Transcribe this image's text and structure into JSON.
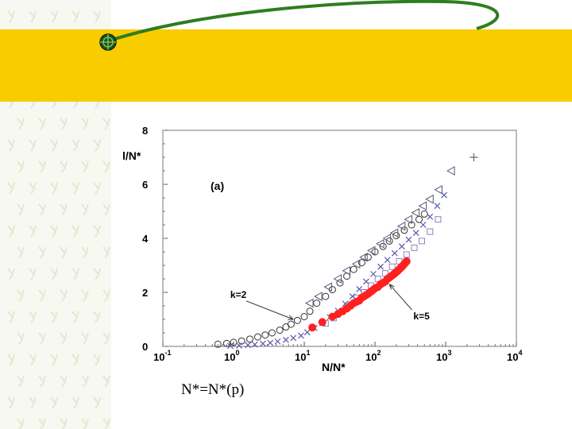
{
  "slide": {
    "caption": "N*=N*(p)",
    "accent_band_color": "#f9cc00",
    "swoosh_color": "#2e7d1e",
    "texture_color": "#dfe8c8"
  },
  "chart_data": {
    "type": "scatter",
    "panel_label": "(a)",
    "xlabel": "N/N*",
    "ylabel": "l/N*",
    "xscale": "log",
    "xlim": [
      0.1,
      10000
    ],
    "ylim": [
      0,
      8
    ],
    "x_ticks": [
      {
        "value": 0.1,
        "base": "10",
        "exp": "-1"
      },
      {
        "value": 1,
        "base": "10",
        "exp": "0"
      },
      {
        "value": 10,
        "base": "10",
        "exp": "1"
      },
      {
        "value": 100,
        "base": "10",
        "exp": "2"
      },
      {
        "value": 1000,
        "base": "10",
        "exp": "3"
      },
      {
        "value": 10000,
        "base": "10",
        "exp": "4"
      }
    ],
    "y_ticks": [
      {
        "value": 0,
        "label": "0"
      },
      {
        "value": 2,
        "label": "2"
      },
      {
        "value": 4,
        "label": "4"
      },
      {
        "value": 6,
        "label": "6"
      },
      {
        "value": 8,
        "label": "8"
      }
    ],
    "annotations": [
      {
        "text": "k=2",
        "x": 0.9,
        "y": 1.8,
        "arrow_to": [
          7,
          1.0
        ]
      },
      {
        "text": "k=5",
        "x": 350,
        "y": 1.0,
        "arrow_to": [
          160,
          2.3
        ]
      }
    ],
    "series": [
      {
        "marker": "circle",
        "color": "#333333",
        "filled": false,
        "x": [
          0.6,
          0.8,
          1,
          1.3,
          1.7,
          2.2,
          2.8,
          3.5,
          4.5,
          5.5,
          6.5,
          8,
          10,
          12,
          15,
          20,
          25,
          32,
          40,
          50,
          65,
          80,
          100,
          130,
          160,
          200,
          260,
          330,
          420,
          500
        ],
        "y": [
          0.08,
          0.11,
          0.15,
          0.2,
          0.27,
          0.35,
          0.42,
          0.5,
          0.6,
          0.72,
          0.82,
          0.96,
          1.1,
          1.3,
          1.6,
          1.85,
          2.1,
          2.35,
          2.6,
          2.85,
          3.1,
          3.3,
          3.5,
          3.7,
          3.9,
          4.1,
          4.3,
          4.5,
          4.7,
          4.9
        ]
      },
      {
        "marker": "triangle-left",
        "color": "#555577",
        "filled": false,
        "x": [
          12,
          16,
          22,
          30,
          40,
          55,
          70,
          90,
          120,
          150,
          190,
          240,
          300,
          380,
          480,
          600,
          800,
          1200
        ],
        "y": [
          1.6,
          1.85,
          2.2,
          2.5,
          2.8,
          3.05,
          3.3,
          3.55,
          3.8,
          4.0,
          4.2,
          4.45,
          4.7,
          4.95,
          5.2,
          5.45,
          5.8,
          6.5
        ]
      },
      {
        "marker": "plus",
        "color": "#666666",
        "filled": false,
        "x": [
          2500
        ],
        "y": [
          7.0
        ]
      },
      {
        "marker": "cross",
        "color": "#5a5aa8",
        "filled": false,
        "x": [
          0.9,
          1.2,
          1.6,
          2,
          2.6,
          3.3,
          4.2,
          5.5,
          7,
          9,
          11,
          14,
          18,
          23,
          30,
          38,
          48,
          60,
          75,
          95,
          120,
          150,
          190,
          240,
          300,
          380,
          480,
          600,
          760,
          950
        ],
        "y": [
          0.02,
          0.03,
          0.05,
          0.07,
          0.1,
          0.13,
          0.18,
          0.24,
          0.31,
          0.4,
          0.52,
          0.68,
          0.86,
          1.08,
          1.32,
          1.58,
          1.85,
          2.12,
          2.4,
          2.68,
          2.95,
          3.2,
          3.45,
          3.7,
          3.95,
          4.2,
          4.5,
          4.8,
          5.2,
          5.6
        ]
      },
      {
        "marker": "square",
        "color": "#9080c0",
        "filled": false,
        "x": [
          20,
          26,
          34,
          44,
          56,
          70,
          88,
          110,
          140,
          175,
          220,
          280,
          360,
          460,
          600,
          780
        ],
        "y": [
          0.85,
          1.05,
          1.3,
          1.55,
          1.8,
          2.0,
          2.25,
          2.5,
          2.7,
          2.95,
          3.15,
          3.4,
          3.65,
          3.9,
          4.25,
          4.7
        ]
      },
      {
        "marker": "circle",
        "color": "#ff2020",
        "filled": true,
        "x": [
          13,
          18,
          25,
          30,
          35,
          40,
          45,
          50,
          55,
          60,
          65,
          70,
          75,
          80,
          85,
          90,
          95,
          100,
          110,
          120,
          130,
          140,
          150,
          160,
          170,
          180,
          190,
          200,
          210,
          220,
          230,
          240,
          250,
          260,
          270,
          280
        ],
        "y": [
          0.7,
          0.9,
          1.1,
          1.2,
          1.3,
          1.4,
          1.5,
          1.6,
          1.65,
          1.7,
          1.8,
          1.85,
          1.9,
          1.95,
          2.0,
          2.05,
          2.1,
          2.15,
          2.2,
          2.3,
          2.35,
          2.4,
          2.5,
          2.55,
          2.6,
          2.65,
          2.7,
          2.75,
          2.8,
          2.85,
          2.9,
          2.95,
          3.0,
          3.05,
          3.1,
          3.15
        ]
      }
    ]
  }
}
